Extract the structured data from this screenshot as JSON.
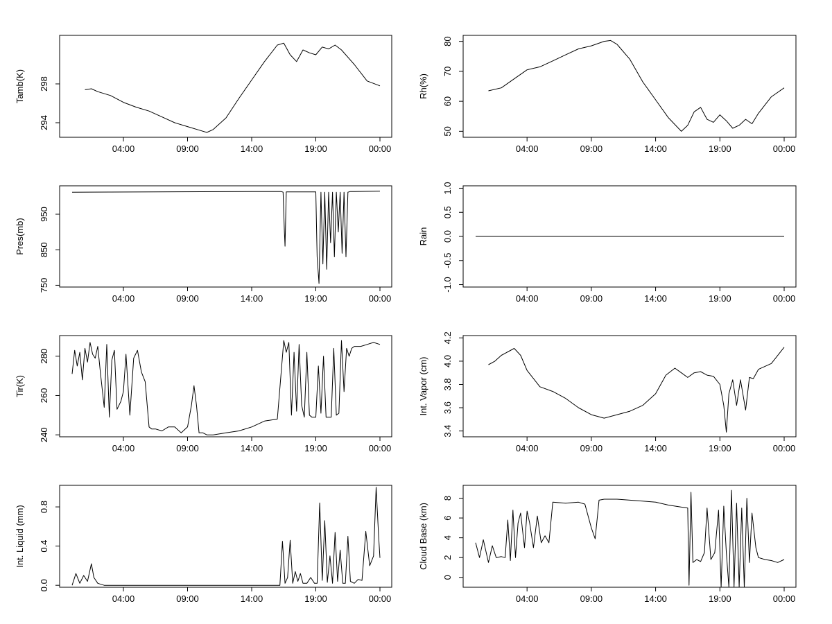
{
  "colors": {
    "background": "#ffffff",
    "line": "#000000"
  },
  "chart_data": [
    {
      "type": "line",
      "ylabel": "Tamb(K)",
      "yticks": [
        294,
        298
      ],
      "ylim": [
        292.5,
        303
      ],
      "xticks": [
        "04:00",
        "09:00",
        "14:00",
        "19:00",
        "00:00"
      ],
      "xlim_hours": [
        -1,
        25
      ],
      "x_hours": [
        1,
        1.5,
        2,
        3,
        4,
        5,
        6,
        7,
        8,
        9,
        10,
        10.5,
        11,
        12,
        13,
        14,
        15,
        16,
        16.5,
        17,
        17.5,
        18,
        18.5,
        19,
        19.5,
        20,
        20.5,
        21,
        22,
        23,
        24
      ],
      "values": [
        297.4,
        297.5,
        297.2,
        296.8,
        296.1,
        295.6,
        295.2,
        294.6,
        294.0,
        293.6,
        293.2,
        293.0,
        293.3,
        294.5,
        296.5,
        298.4,
        300.3,
        302.0,
        302.2,
        301.0,
        300.3,
        301.5,
        301.2,
        301.0,
        301.8,
        301.6,
        302.0,
        301.5,
        300.0,
        298.3,
        297.8
      ]
    },
    {
      "type": "line",
      "ylabel": "Rh(%)",
      "yticks": [
        50,
        60,
        70,
        80
      ],
      "ylim": [
        48,
        82
      ],
      "xticks": [
        "04:00",
        "09:00",
        "14:00",
        "19:00",
        "00:00"
      ],
      "xlim_hours": [
        -1,
        25
      ],
      "x_hours": [
        1,
        2,
        3,
        4,
        5,
        6,
        7,
        8,
        9,
        10,
        10.5,
        11,
        12,
        13,
        14,
        15,
        16,
        16.5,
        17,
        17.5,
        18,
        18.5,
        19,
        19.5,
        20,
        20.5,
        21,
        21.5,
        22,
        23,
        24
      ],
      "values": [
        63.5,
        64.5,
        67.5,
        70.5,
        71.5,
        73.5,
        75.5,
        77.5,
        78.5,
        80.0,
        80.3,
        79.0,
        74.0,
        66.5,
        60.5,
        54.5,
        50.0,
        52.0,
        56.5,
        58.0,
        54.0,
        53.0,
        55.5,
        53.5,
        51.0,
        52.0,
        54.0,
        52.5,
        56.0,
        61.5,
        64.5
      ]
    },
    {
      "type": "line",
      "ylabel": "Pres(mb)",
      "yticks": [
        750,
        850,
        950
      ],
      "ylim": [
        745,
        1030
      ],
      "xticks": [
        "04:00",
        "09:00",
        "14:00",
        "19:00",
        "00:00"
      ],
      "xlim_hours": [
        -1,
        25
      ],
      "x_hours": [
        0,
        14,
        16.3,
        16.45,
        16.55,
        16.6,
        16.7,
        16.8,
        19.0,
        19.1,
        19.25,
        19.4,
        19.55,
        19.7,
        19.85,
        20.0,
        20.15,
        20.3,
        20.45,
        20.6,
        20.75,
        20.9,
        21.05,
        21.2,
        21.35,
        21.5,
        21.7,
        22,
        24
      ],
      "values": [
        1012,
        1014,
        1014,
        1012,
        900,
        860,
        1013,
        1013,
        1013,
        830,
        755,
        1012,
        810,
        1012,
        795,
        1012,
        870,
        1012,
        830,
        1012,
        900,
        1012,
        840,
        1012,
        830,
        1012,
        1014,
        1014,
        1015
      ]
    },
    {
      "type": "line",
      "ylabel": "Rain",
      "yticks": [
        "-1.0",
        "-0.5",
        "0.0",
        "0.5",
        "1.0"
      ],
      "ylim": [
        -1.05,
        1.05
      ],
      "xticks": [
        "04:00",
        "09:00",
        "14:00",
        "19:00",
        "00:00"
      ],
      "xlim_hours": [
        -1,
        25
      ],
      "x_hours": [
        0,
        24
      ],
      "values": [
        0,
        0
      ]
    },
    {
      "type": "line",
      "ylabel": "Tir(K)",
      "yticks": [
        240,
        260,
        280
      ],
      "ylim": [
        239,
        290.5
      ],
      "xticks": [
        "04:00",
        "09:00",
        "14:00",
        "19:00",
        "00:00"
      ],
      "xlim_hours": [
        -1,
        25
      ],
      "x_hours": [
        0,
        0.2,
        0.4,
        0.6,
        0.8,
        1.0,
        1.2,
        1.4,
        1.6,
        1.8,
        2.0,
        2.2,
        2.5,
        2.7,
        2.9,
        3.1,
        3.3,
        3.5,
        3.8,
        4.0,
        4.2,
        4.5,
        4.8,
        5.1,
        5.4,
        5.7,
        6.0,
        6.2,
        6.5,
        7.0,
        7.5,
        8.0,
        8.5,
        9.0,
        9.3,
        9.5,
        9.7,
        9.9,
        10.2,
        10.5,
        11,
        12,
        13,
        14,
        15,
        16,
        16.5,
        16.7,
        16.9,
        17.1,
        17.3,
        17.5,
        17.7,
        17.9,
        18.1,
        18.3,
        18.5,
        18.7,
        19.0,
        19.2,
        19.4,
        19.6,
        19.8,
        20.0,
        20.2,
        20.4,
        20.6,
        20.8,
        21.0,
        21.2,
        21.4,
        21.6,
        21.8,
        22.0,
        22.5,
        23,
        23.5,
        24
      ],
      "values": [
        271,
        283,
        275,
        282,
        268,
        284,
        277,
        287,
        281,
        279,
        285,
        272,
        254,
        286,
        249,
        278,
        283,
        253,
        257,
        262,
        281,
        250,
        279,
        283,
        272,
        267,
        244,
        243,
        243,
        242,
        244,
        244,
        241,
        244,
        255,
        265,
        255,
        241,
        241,
        240,
        240,
        241,
        242,
        244,
        247,
        248,
        288,
        282,
        287,
        250,
        282,
        252,
        286,
        255,
        249,
        282,
        250,
        249,
        249,
        275,
        251,
        280,
        249,
        249,
        249,
        284,
        250,
        251,
        288,
        262,
        284,
        280,
        284,
        285,
        285,
        286,
        287,
        286
      ]
    },
    {
      "type": "line",
      "ylabel": "Int. Vapor (cm)",
      "yticks": [
        "3.4",
        "3.6",
        "3.8",
        "4.0",
        "4.2"
      ],
      "ylim": [
        3.35,
        4.22
      ],
      "xticks": [
        "04:00",
        "09:00",
        "14:00",
        "19:00",
        "00:00"
      ],
      "xlim_hours": [
        -1,
        25
      ],
      "x_hours": [
        1,
        1.5,
        2,
        2.5,
        3,
        3.5,
        4,
        5,
        6,
        7,
        8,
        9,
        10,
        11,
        12,
        13,
        14,
        14.8,
        15.5,
        16,
        16.5,
        17,
        17.5,
        18,
        18.5,
        19,
        19.3,
        19.5,
        19.7,
        20,
        20.3,
        20.6,
        21,
        21.3,
        21.6,
        22,
        23,
        24
      ],
      "values": [
        3.97,
        4.0,
        4.05,
        4.08,
        4.11,
        4.05,
        3.92,
        3.78,
        3.74,
        3.68,
        3.6,
        3.54,
        3.51,
        3.54,
        3.57,
        3.62,
        3.72,
        3.88,
        3.94,
        3.9,
        3.86,
        3.9,
        3.91,
        3.88,
        3.87,
        3.8,
        3.62,
        3.39,
        3.72,
        3.84,
        3.62,
        3.84,
        3.58,
        3.86,
        3.85,
        3.93,
        3.98,
        4.12
      ]
    },
    {
      "type": "line",
      "ylabel": "Int. Liquid (mm)",
      "yticks": [
        "0.0",
        "0.4",
        "0.8"
      ],
      "ylim": [
        -0.02,
        1.02
      ],
      "xticks": [
        "04:00",
        "09:00",
        "14:00",
        "19:00",
        "00:00"
      ],
      "xlim_hours": [
        -1,
        25
      ],
      "x_hours": [
        0,
        0.3,
        0.6,
        0.9,
        1.2,
        1.5,
        1.7,
        2.0,
        2.5,
        4,
        8,
        12,
        16.2,
        16.4,
        16.6,
        16.8,
        17.0,
        17.2,
        17.4,
        17.6,
        17.8,
        18.0,
        18.3,
        18.6,
        18.9,
        19.1,
        19.3,
        19.5,
        19.7,
        19.9,
        20.1,
        20.3,
        20.5,
        20.7,
        20.9,
        21.1,
        21.3,
        21.5,
        21.7,
        22.0,
        22.3,
        22.6,
        22.9,
        23.2,
        23.5,
        23.7,
        23.9,
        24.0
      ],
      "values": [
        0.0,
        0.12,
        0.02,
        0.1,
        0.04,
        0.22,
        0.08,
        0.02,
        0.0,
        0.0,
        0.0,
        0.0,
        0.0,
        0.45,
        0.02,
        0.08,
        0.46,
        0.02,
        0.14,
        0.04,
        0.12,
        0.02,
        0.02,
        0.08,
        0.02,
        0.02,
        0.84,
        0.05,
        0.66,
        0.03,
        0.3,
        0.02,
        0.54,
        0.04,
        0.36,
        0.02,
        0.02,
        0.5,
        0.04,
        0.02,
        0.06,
        0.05,
        0.55,
        0.2,
        0.3,
        1.0,
        0.5,
        0.28
      ]
    },
    {
      "type": "line",
      "ylabel": "Cloud Base (km)",
      "yticks": [
        0,
        2,
        4,
        6,
        8
      ],
      "ylim": [
        -1,
        9.3
      ],
      "xticks": [
        "04:00",
        "09:00",
        "14:00",
        "19:00",
        "00:00"
      ],
      "xlim_hours": [
        -1,
        25
      ],
      "x_hours": [
        0,
        0.3,
        0.6,
        1.0,
        1.3,
        1.6,
        2.0,
        2.3,
        2.5,
        2.7,
        2.9,
        3.1,
        3.3,
        3.5,
        3.8,
        4.0,
        4.2,
        4.5,
        4.8,
        5.1,
        5.4,
        5.7,
        6.0,
        7,
        8,
        8.5,
        9.0,
        9.3,
        9.6,
        10,
        11,
        12,
        13,
        14,
        15,
        16,
        16.5,
        16.6,
        16.75,
        16.9,
        17.2,
        17.5,
        17.8,
        18.0,
        18.3,
        18.6,
        18.9,
        19.1,
        19.3,
        19.5,
        19.7,
        19.9,
        20.1,
        20.3,
        20.5,
        20.7,
        20.9,
        21.1,
        21.3,
        21.5,
        21.8,
        22.0,
        22.5,
        23,
        23.5,
        24
      ],
      "values": [
        3.5,
        2.0,
        3.8,
        1.5,
        3.2,
        2.0,
        2.1,
        2.0,
        5.8,
        1.7,
        6.8,
        2.0,
        5.5,
        6.5,
        3.0,
        6.7,
        5.5,
        3.0,
        6.2,
        3.5,
        4.2,
        3.5,
        7.6,
        7.5,
        7.6,
        7.4,
        5.0,
        3.9,
        7.8,
        7.9,
        7.9,
        7.8,
        7.7,
        7.6,
        7.3,
        7.1,
        7.0,
        -0.8,
        8.6,
        1.5,
        1.8,
        1.6,
        2.5,
        7.0,
        1.8,
        2.5,
        6.8,
        -1.0,
        7.2,
        2.5,
        -1.0,
        8.8,
        -1.0,
        7.5,
        -1.0,
        7.0,
        -1.0,
        8.0,
        1.5,
        6.5,
        3.0,
        2.0,
        1.8,
        1.7,
        1.5,
        1.8
      ]
    }
  ]
}
